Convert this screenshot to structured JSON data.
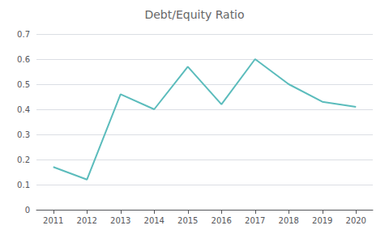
{
  "chart_data": {
    "type": "line",
    "title": "Debt/Equity Ratio",
    "x": [
      2011,
      2012,
      2013,
      2014,
      2015,
      2016,
      2017,
      2018,
      2019,
      2020
    ],
    "values": [
      0.17,
      0.12,
      0.46,
      0.4,
      0.57,
      0.42,
      0.6,
      0.5,
      0.43,
      0.41
    ],
    "color": "#5bbcbc",
    "xlim": [
      2010.5,
      2020.5
    ],
    "xticks": [
      2011,
      2012,
      2013,
      2014,
      2015,
      2016,
      2017,
      2018,
      2019,
      2020
    ],
    "ylim": [
      0,
      0.7
    ],
    "yticks": [
      0,
      0.1,
      0.2,
      0.3,
      0.4,
      0.5,
      0.6,
      0.7
    ],
    "grid": true
  }
}
